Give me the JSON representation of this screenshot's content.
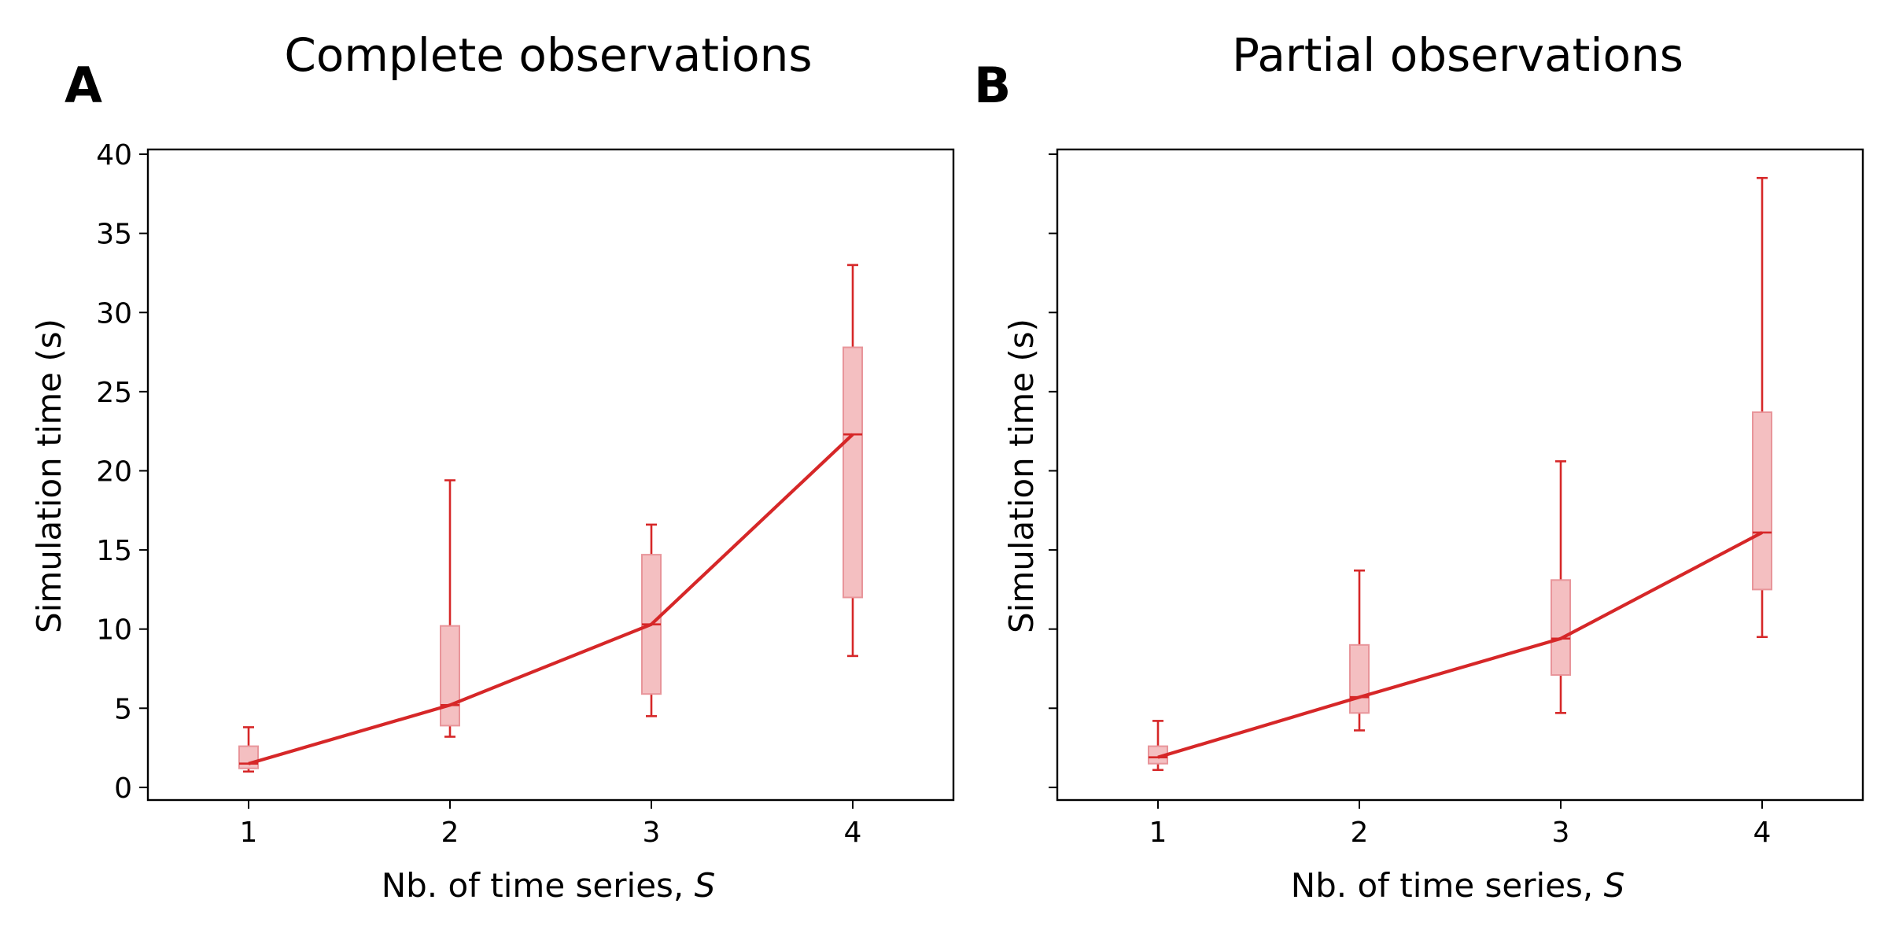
{
  "figure": {
    "panels": [
      {
        "letter": "A",
        "title": "Complete observations"
      },
      {
        "letter": "B",
        "title": "Partial observations"
      }
    ],
    "color": "#d62728",
    "box_fill": "#f4bfc1",
    "box_edge": "#e8959a"
  },
  "chart_data": [
    {
      "type": "line",
      "title": "Complete observations",
      "panel_letter": "A",
      "xlabel_prefix": "Nb. of time series, ",
      "xlabel_symbol": "S",
      "ylabel": "Simulation time (s)",
      "x": [
        1,
        2,
        3,
        4
      ],
      "xlim": [
        0.5,
        4.5
      ],
      "ylim": [
        -0.8,
        40.3
      ],
      "xticks": [
        1,
        2,
        3,
        4
      ],
      "yticks": [
        0,
        5,
        10,
        15,
        20,
        25,
        30,
        35,
        40
      ],
      "show_ytick_labels": true,
      "grid": false,
      "series": [
        {
          "median": [
            1.5,
            5.2,
            10.3,
            22.3
          ],
          "q1": [
            1.2,
            3.9,
            5.9,
            12.0
          ],
          "q3": [
            2.6,
            10.2,
            14.7,
            27.8
          ],
          "whisker_low": [
            1.0,
            3.2,
            4.5,
            8.3
          ],
          "whisker_high": [
            3.8,
            19.4,
            16.6,
            33.0
          ]
        }
      ]
    },
    {
      "type": "line",
      "title": "Partial observations",
      "panel_letter": "B",
      "xlabel_prefix": "Nb. of time series, ",
      "xlabel_symbol": "S",
      "ylabel": "Simulation time (s)",
      "x": [
        1,
        2,
        3,
        4
      ],
      "xlim": [
        0.5,
        4.5
      ],
      "ylim": [
        -0.8,
        40.3
      ],
      "xticks": [
        1,
        2,
        3,
        4
      ],
      "yticks": [
        0,
        5,
        10,
        15,
        20,
        25,
        30,
        35,
        40
      ],
      "show_ytick_labels": false,
      "grid": false,
      "series": [
        {
          "median": [
            1.9,
            5.7,
            9.4,
            16.1
          ],
          "q1": [
            1.5,
            4.7,
            7.1,
            12.5
          ],
          "q3": [
            2.6,
            9.0,
            13.1,
            23.7
          ],
          "whisker_low": [
            1.1,
            3.6,
            4.7,
            9.5
          ],
          "whisker_high": [
            4.2,
            13.7,
            20.6,
            38.5
          ]
        }
      ]
    }
  ]
}
